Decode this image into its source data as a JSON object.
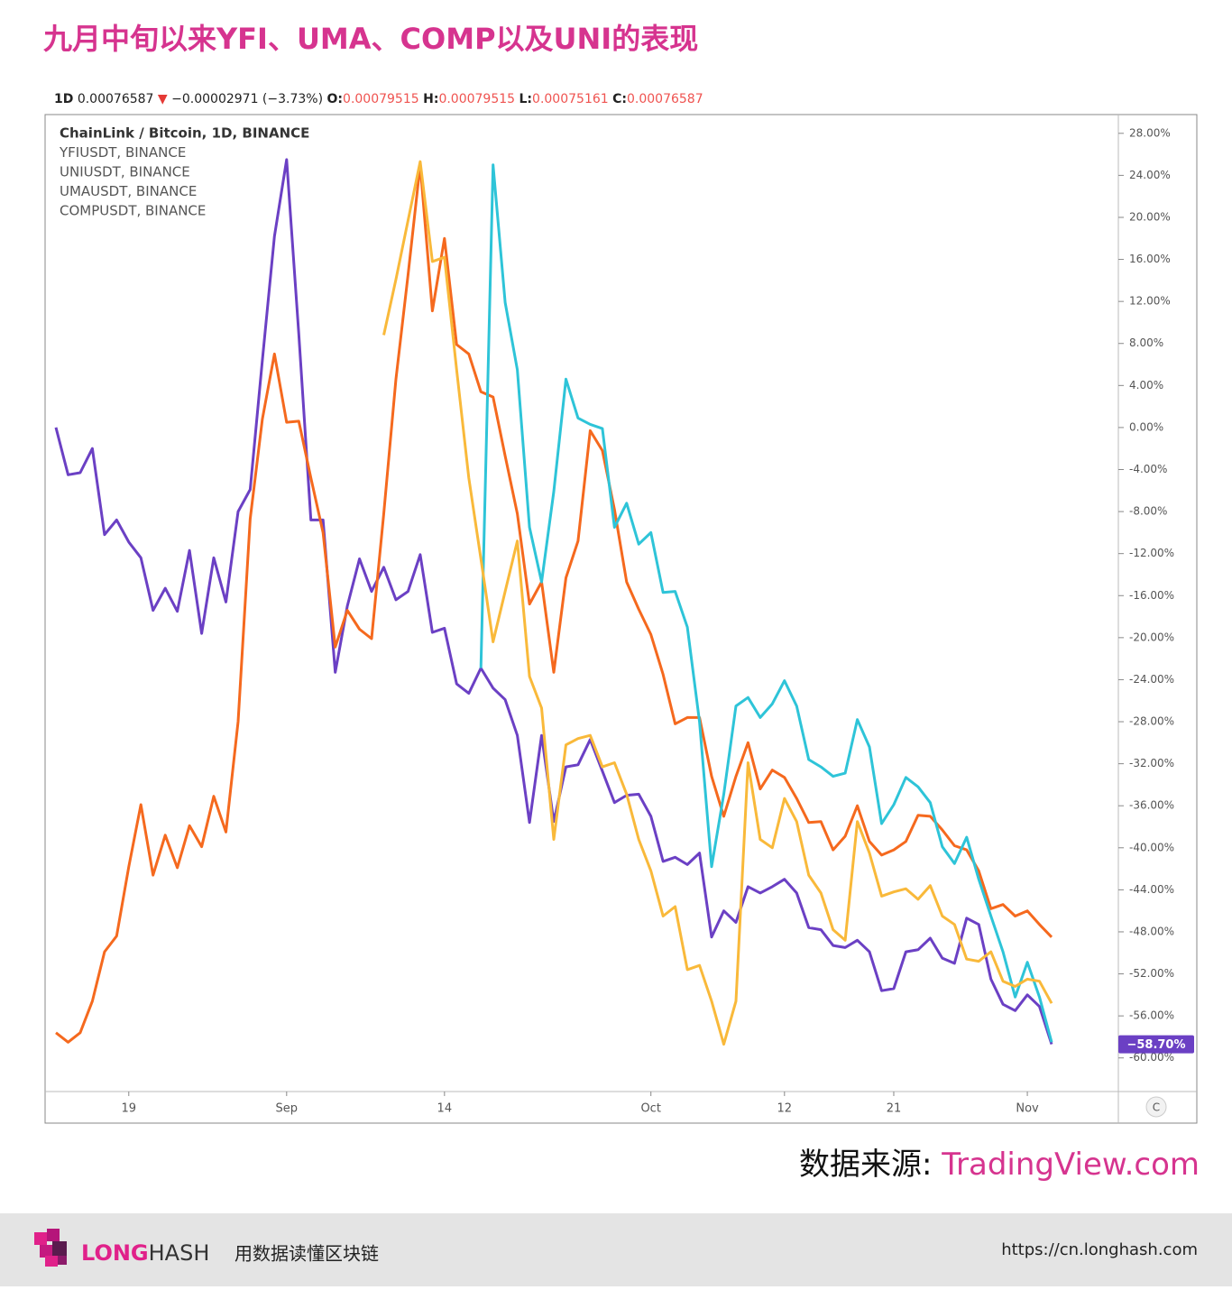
{
  "chart_data": {
    "type": "line",
    "title": "九月中旬以来YFI、UMA、COMP以及UNI的表现",
    "header": {
      "interval": "1D",
      "price": "0.00076587",
      "arrow": "▼",
      "change": "−0.00002971 (−3.73%)",
      "o_label": "O:",
      "o": "0.00079515",
      "h_label": "H:",
      "h": "0.00079515",
      "l_label": "L:",
      "l": "0.00075161",
      "c_label": "C:",
      "c": "0.00076587"
    },
    "legend": [
      "ChainLink / Bitcoin, 1D, BINANCE",
      "YFIUSDT, BINANCE",
      "UNIUSDT, BINANCE",
      "UMAUSDT, BINANCE",
      "COMPUSDT, BINANCE"
    ],
    "categories": [
      null,
      null,
      null,
      null,
      null,
      null,
      "19",
      null,
      null,
      null,
      null,
      null,
      null,
      null,
      null,
      null,
      null,
      null,
      null,
      "Sep",
      null,
      null,
      null,
      null,
      null,
      null,
      null,
      null,
      null,
      null,
      null,
      null,
      "14",
      null,
      null,
      null,
      null,
      null,
      null,
      null,
      null,
      null,
      null,
      null,
      null,
      null,
      null,
      null,
      null,
      "Oct",
      null,
      null,
      null,
      null,
      null,
      null,
      null,
      null,
      null,
      null,
      "12",
      null,
      null,
      null,
      null,
      null,
      null,
      null,
      null,
      "21",
      null,
      null,
      null,
      null,
      null,
      null,
      null,
      null,
      null,
      null,
      "Nov",
      null,
      null
    ],
    "series": [
      {
        "color": "#6b40c4",
        "values": [
          0,
          -4.5,
          -4.3,
          -2,
          -10.2,
          -8.8,
          -10.9,
          -12.4,
          -17.4,
          -15.3,
          -17.5,
          -11.7,
          -19.6,
          -12.4,
          -16.6,
          -8,
          -5.9,
          6.4,
          18.2,
          25.5,
          8.9,
          -8.8,
          -8.8,
          -23.3,
          -17,
          -12.5,
          -15.6,
          -13.3,
          -16.4,
          -15.6,
          -12.1,
          -19.5,
          -19.1,
          -24.4,
          -25.3,
          -22.9,
          -24.8,
          -25.9,
          -29.3,
          -37.6,
          -29.3,
          -37.5,
          -32.3,
          -32.1,
          -29.7,
          -32.7,
          -35.7,
          -35,
          -34.9,
          -37,
          -41.3,
          -40.9,
          -41.6,
          -40.5,
          -48.5,
          -46,
          -47.1,
          -43.7,
          -44.3,
          -43.7,
          -43,
          -44.3,
          -47.6,
          -47.8,
          -49.3,
          -49.5,
          -48.8,
          -49.9,
          -53.6,
          -53.4,
          -49.9,
          -49.7,
          -48.6,
          -50.5,
          -51,
          -46.7,
          -47.3,
          -52.5,
          -54.9,
          -55.5,
          -54,
          -55.1,
          -58.7
        ]
      },
      {
        "color": "#f5691e",
        "values": [
          -57.6,
          -58.5,
          -57.6,
          -54.6,
          -49.9,
          -48.4,
          -41.8,
          -35.9,
          -42.6,
          -38.8,
          -41.9,
          -37.9,
          -39.9,
          -35.1,
          -38.5,
          -28,
          -8.7,
          0.8,
          7,
          0.5,
          0.6,
          -4.8,
          -10,
          -20.9,
          -17.4,
          -19.2,
          -20.1,
          -8.2,
          4.6,
          14.5,
          25,
          11.1,
          18,
          7.9,
          7,
          3.4,
          2.9,
          -2.7,
          -8.2,
          -16.8,
          -14.7,
          -23.3,
          -14.3,
          -10.8,
          -0.3,
          -2.2,
          -7.8,
          -14.7,
          -17.3,
          -19.7,
          -23.5,
          -28.2,
          -27.6,
          -27.6,
          -33.2,
          -37,
          -33.2,
          -30,
          -34.4,
          -32.6,
          -33.3,
          -35.3,
          -37.6,
          -37.5,
          -40.2,
          -38.9,
          -36,
          -39.4,
          -40.7,
          -40.2,
          -39.4,
          -36.9,
          -37,
          -38.3,
          -39.8,
          -40.2,
          -42.2,
          -45.8,
          -45.4,
          -46.5,
          -46,
          -47.3,
          -48.5
        ]
      },
      {
        "color": "#2ec4d8",
        "values": [
          null,
          null,
          null,
          null,
          null,
          null,
          null,
          null,
          null,
          null,
          null,
          null,
          null,
          null,
          null,
          null,
          null,
          null,
          null,
          null,
          null,
          null,
          null,
          null,
          null,
          null,
          null,
          null,
          null,
          null,
          null,
          null,
          null,
          null,
          null,
          -22.9,
          25,
          11.9,
          5.5,
          -9.5,
          -14.7,
          -6.1,
          4.6,
          0.9,
          0.3,
          -0.1,
          -9.5,
          -7.2,
          -11.1,
          -10,
          -15.7,
          -15.6,
          -19,
          -28,
          -41.8,
          -34.9,
          -26.5,
          -25.7,
          -27.6,
          -26.3,
          -24.1,
          -26.5,
          -31.6,
          -32.3,
          -33.2,
          -32.9,
          -27.8,
          -30.4,
          -37.7,
          -35.9,
          -33.3,
          -34.2,
          -35.7,
          -39.9,
          -41.5,
          -39,
          -43,
          -46.5,
          -49.9,
          -54.2,
          -50.9,
          -54.2,
          -58.5
        ]
      },
      {
        "color": "#f9b93a",
        "values": [
          null,
          null,
          null,
          null,
          null,
          null,
          null,
          null,
          null,
          null,
          null,
          null,
          null,
          null,
          null,
          null,
          null,
          null,
          null,
          null,
          null,
          null,
          null,
          null,
          null,
          null,
          null,
          8.8,
          14.1,
          19.7,
          25.3,
          15.8,
          16.2,
          5.5,
          -4.8,
          -12.5,
          -20.4,
          -15.6,
          -10.8,
          -23.7,
          -26.7,
          -39.2,
          -30.2,
          -29.6,
          -29.3,
          -32.3,
          -31.9,
          -34.9,
          -39.2,
          -42.2,
          -46.5,
          -45.6,
          -51.6,
          -51.2,
          -54.6,
          -58.7,
          -54.6,
          -31.9,
          -39.2,
          -40,
          -35.3,
          -37.5,
          -42.6,
          -44.3,
          -47.8,
          -48.8,
          -37.5,
          -40.5,
          -44.6,
          -44.2,
          -43.9,
          -44.9,
          -43.6,
          -46.5,
          -47.3,
          -50.6,
          -50.8,
          -49.9,
          -52.7,
          -53.2,
          -52.5,
          -52.7,
          -54.8
        ]
      }
    ],
    "last_label": "−58.70%",
    "ylim": [
      -63.2,
      29.7
    ],
    "yticks": [
      {
        "value": 28,
        "label": "28.00%"
      },
      {
        "value": 24,
        "label": "24.00%"
      },
      {
        "value": 20,
        "label": "20.00%"
      },
      {
        "value": 16,
        "label": "16.00%"
      },
      {
        "value": 12,
        "label": "12.00%"
      },
      {
        "value": 8,
        "label": "8.00%"
      },
      {
        "value": 4,
        "label": "4.00%"
      },
      {
        "value": 0,
        "label": "0.00%"
      },
      {
        "value": -4,
        "label": "-4.00%"
      },
      {
        "value": -8,
        "label": "-8.00%"
      },
      {
        "value": -12,
        "label": "-12.00%"
      },
      {
        "value": -16,
        "label": "-16.00%"
      },
      {
        "value": -20,
        "label": "-20.00%"
      },
      {
        "value": -24,
        "label": "-24.00%"
      },
      {
        "value": -28,
        "label": "-28.00%"
      },
      {
        "value": -32,
        "label": "-32.00%"
      },
      {
        "value": -36,
        "label": "-36.00%"
      },
      {
        "value": -40,
        "label": "-40.00%"
      },
      {
        "value": -44,
        "label": "-44.00%"
      },
      {
        "value": -48,
        "label": "-48.00%"
      },
      {
        "value": -52,
        "label": "-52.00%"
      },
      {
        "value": -56,
        "label": "-56.00%"
      },
      {
        "value": -60,
        "label": "-60.00%"
      }
    ],
    "corner_button": "C",
    "source_prefix": "数据来源: ",
    "source": "TradingView.com",
    "footer": {
      "brand_a": "LONG",
      "brand_b": "HASH",
      "slogan": "用数据读懂区块链",
      "url": "https://cn.longhash.com"
    }
  }
}
